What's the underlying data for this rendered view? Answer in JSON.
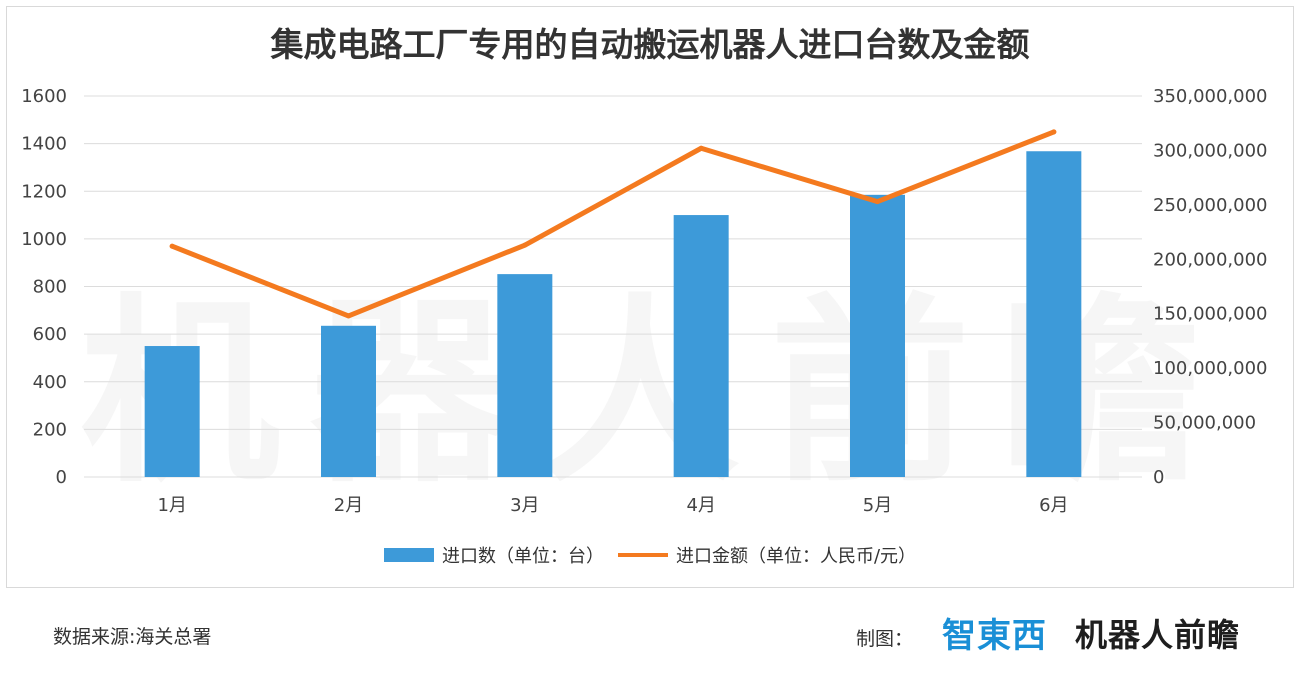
{
  "chart_data": {
    "type": "bar",
    "title": "集成电路工厂专用的自动搬运机器人进口台数及金额",
    "categories": [
      "1月",
      "2月",
      "3月",
      "4月",
      "5月",
      "6月"
    ],
    "series": [
      {
        "name": "进口数（单位：台）",
        "type": "bar",
        "axis": "left",
        "color": "#3d9ad9",
        "values": [
          550,
          635,
          852,
          1100,
          1185,
          1368
        ]
      },
      {
        "name": "进口金额（单位：人民币/元）",
        "type": "line",
        "axis": "right",
        "color": "#f47a1f",
        "values": [
          212000000,
          148000000,
          213000000,
          302000000,
          253000000,
          317000000
        ]
      }
    ],
    "y_left": {
      "min": 0,
      "max": 1600,
      "ticks": [
        "0",
        "200",
        "400",
        "600",
        "800",
        "1000",
        "1200",
        "1400",
        "1600"
      ]
    },
    "y_right": {
      "min": 0,
      "max": 350000000,
      "ticks": [
        "0",
        "50,000,000",
        "100,000,000",
        "150,000,000",
        "200,000,000",
        "250,000,000",
        "300,000,000",
        "350,000,000"
      ]
    },
    "grid": true,
    "legend_position": "bottom"
  },
  "footer": {
    "source": "数据来源:海关总署",
    "credit_label": "制图：",
    "logo_zhidx": "智東西",
    "logo_robot": "机器人前瞻"
  },
  "watermark": "机器人前瞻"
}
